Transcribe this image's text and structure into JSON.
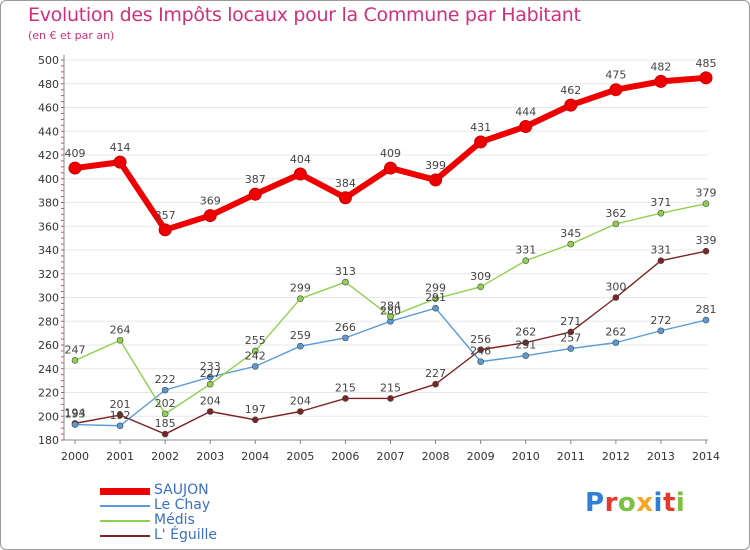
{
  "chart_data": {
    "type": "line",
    "title": "Evolution des Impôts locaux pour la Commune par Habitant",
    "subtitle": "(en € et par an)",
    "xlabel": "",
    "ylabel": "",
    "ylim": [
      180,
      500
    ],
    "ytick_step": 20,
    "yticks": [
      "180",
      "200",
      "220",
      "240",
      "260",
      "280",
      "300",
      "320",
      "340",
      "360",
      "380",
      "400",
      "420",
      "440",
      "460",
      "480",
      "500"
    ],
    "categories": [
      "2000",
      "2001",
      "2002",
      "2003",
      "2004",
      "2005",
      "2006",
      "2007",
      "2008",
      "2009",
      "2010",
      "2011",
      "2012",
      "2013",
      "2014"
    ],
    "series": [
      {
        "name": "SAUJON",
        "color": "#ee0000",
        "values": [
          409,
          414,
          357,
          369,
          387,
          404,
          384,
          409,
          399,
          431,
          444,
          462,
          475,
          482,
          485
        ],
        "labels": [
          "409",
          "414",
          "357",
          "369",
          "387",
          "404",
          "384",
          "409",
          "399",
          "431",
          "444",
          "462",
          "475",
          "482",
          "485"
        ]
      },
      {
        "name": "Le Chay",
        "color": "#5b9bd5",
        "values": [
          193,
          192,
          222,
          233,
          242,
          259,
          266,
          280,
          291,
          246,
          251,
          257,
          262,
          272,
          281
        ],
        "labels": [
          "193",
          "192",
          "222",
          "233",
          "242",
          "259",
          "266",
          "280",
          "291",
          "246",
          "251",
          "257",
          "262",
          "272",
          "281"
        ]
      },
      {
        "name": "Médis",
        "color": "#90d050",
        "values": [
          247,
          264,
          202,
          227,
          255,
          299,
          313,
          284,
          299,
          309,
          331,
          345,
          362,
          371,
          379
        ],
        "labels": [
          "247",
          "264",
          "202",
          "227",
          "255",
          "299",
          "313",
          "284",
          "299",
          "309",
          "331",
          "345",
          "362",
          "371",
          "379"
        ]
      },
      {
        "name": "L' Éguille",
        "color": "#7b2424",
        "values": [
          194,
          201,
          185,
          204,
          197,
          204,
          215,
          215,
          227,
          256,
          262,
          271,
          300,
          331,
          339
        ],
        "labels": [
          "194",
          "201",
          "185",
          "204",
          "197",
          "204",
          "215",
          "215",
          "227",
          "256",
          "262",
          "271",
          "300",
          "331",
          "339"
        ]
      }
    ],
    "legend_position": "bottom-left"
  },
  "logo": {
    "text": "Proxiti",
    "letters": [
      "P",
      "r",
      "o",
      "x",
      "i",
      "t",
      "i"
    ],
    "colors": [
      "#2f7fd6",
      "#e3392e",
      "#7ac143",
      "#f5a623",
      "#2f7fd6",
      "#e3392e",
      "#7ac143"
    ]
  }
}
